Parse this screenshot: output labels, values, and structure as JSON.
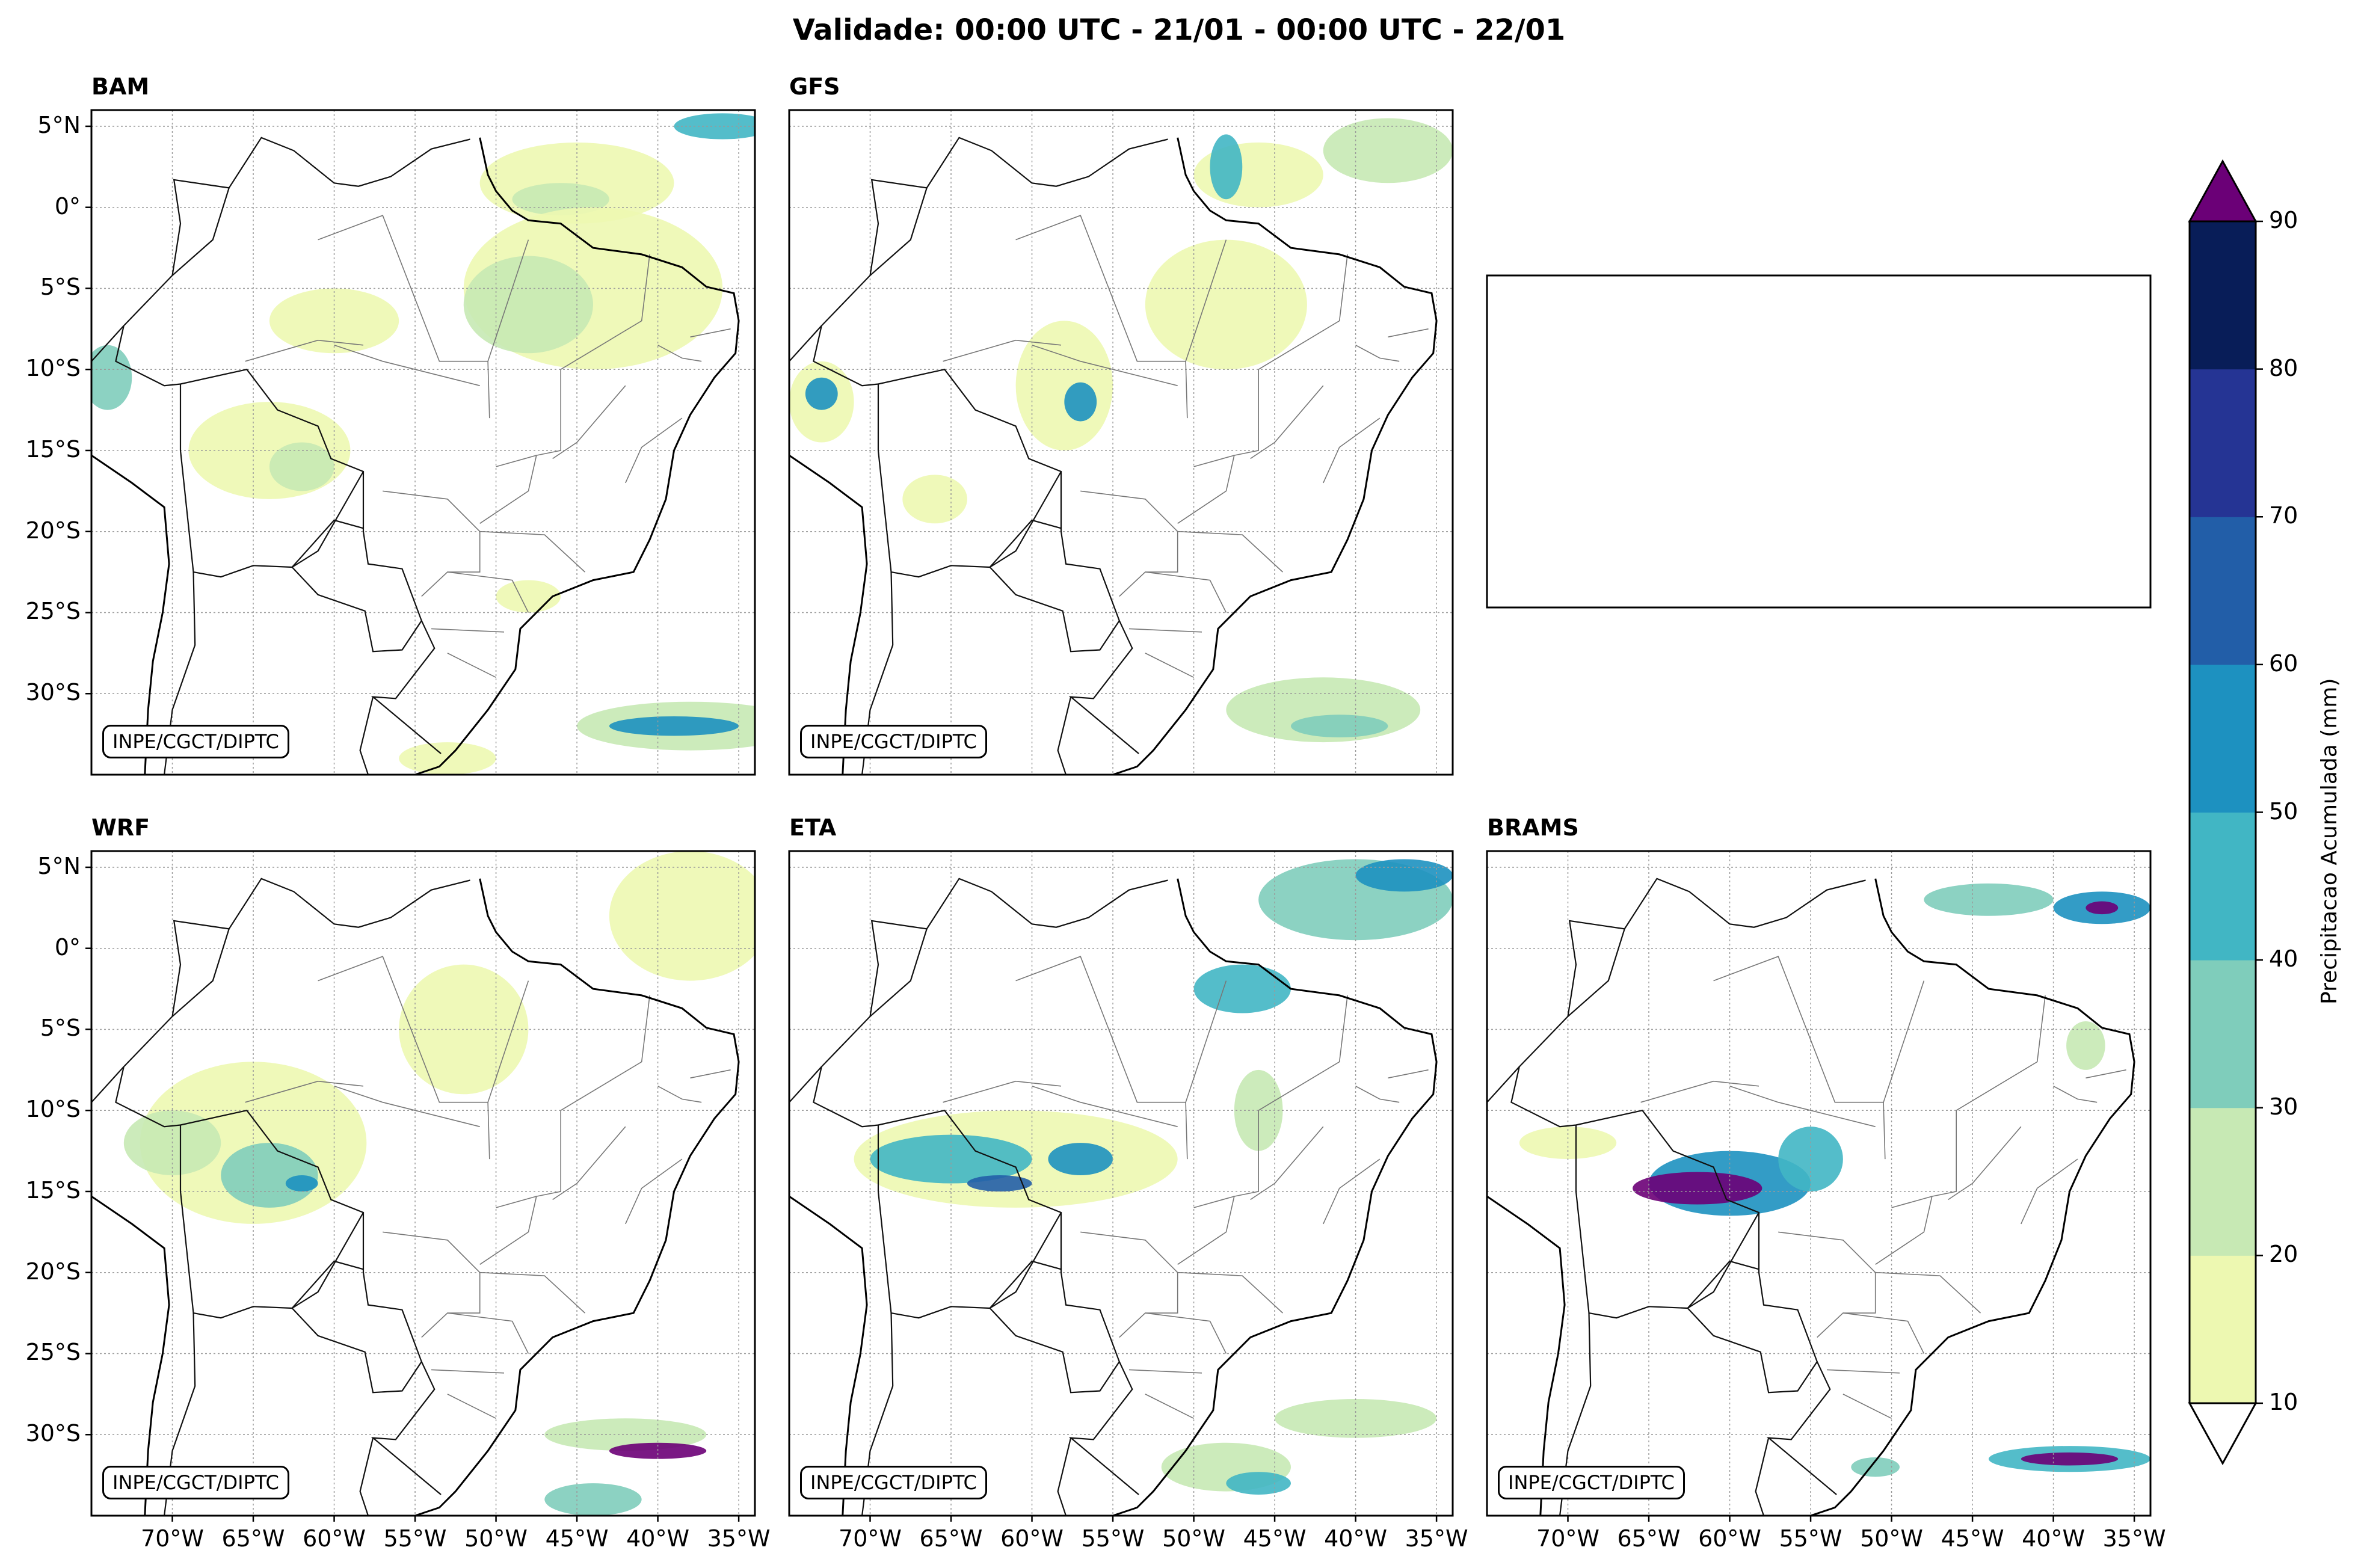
{
  "title": "Validade: 00:00 UTC - 21/01 - 00:00 UTC - 22/01",
  "credit": "INPE/CGCT/DIPTC",
  "panels": [
    {
      "name": "BAM"
    },
    {
      "name": "GFS"
    },
    {
      "name": ""
    },
    {
      "name": "WRF"
    },
    {
      "name": "ETA"
    },
    {
      "name": "BRAMS"
    }
  ],
  "lat_ticks": [
    "5°N",
    "0°",
    "5°S",
    "10°S",
    "15°S",
    "20°S",
    "25°S",
    "30°S"
  ],
  "lon_ticks": [
    "70°W",
    "65°W",
    "60°W",
    "55°W",
    "50°W",
    "45°W",
    "40°W",
    "35°W"
  ],
  "map_extent": {
    "lon": [
      -75,
      -34
    ],
    "lat": [
      -35,
      6
    ]
  },
  "colorbar": {
    "label": "Precipitacao Acumulada (mm)",
    "levels": [
      10,
      20,
      30,
      40,
      50,
      60,
      70,
      80,
      90
    ],
    "colors": [
      "#edf8b1",
      "#c7e9b4",
      "#7fcdbb",
      "#41b6c4",
      "#1d91c0",
      "#225ea8",
      "#253494",
      "#081d58"
    ],
    "over_color": "#6b0077",
    "under_color": "#ffffff"
  }
}
